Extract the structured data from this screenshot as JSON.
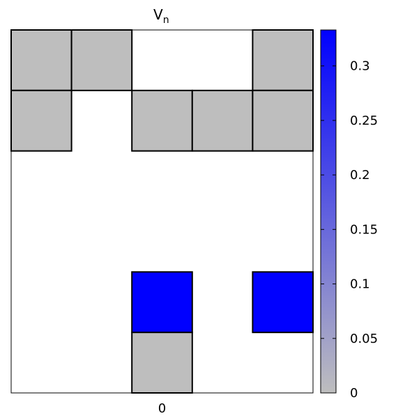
{
  "chart_data": {
    "type": "heatmap",
    "title": "V",
    "title_subscript": "n",
    "columns": 5,
    "rows": 6,
    "xtick_labels": [
      "0"
    ],
    "cells": [
      {
        "col": 0,
        "row": 0,
        "value": 0
      },
      {
        "col": 1,
        "row": 0,
        "value": 0
      },
      {
        "col": 4,
        "row": 0,
        "value": 0
      },
      {
        "col": 0,
        "row": 1,
        "value": 0
      },
      {
        "col": 2,
        "row": 1,
        "value": 0
      },
      {
        "col": 3,
        "row": 1,
        "value": 0
      },
      {
        "col": 4,
        "row": 1,
        "value": 0
      },
      {
        "col": 2,
        "row": 4,
        "value": 0.333
      },
      {
        "col": 4,
        "row": 4,
        "value": 0.333
      },
      {
        "col": 2,
        "row": 5,
        "value": 0
      }
    ],
    "colorbar": {
      "min": 0,
      "max": 0.333,
      "low_color": "#bebebe",
      "high_color": "#0000ff",
      "ticks": [
        0,
        0.05,
        0.1,
        0.15,
        0.2,
        0.25,
        0.3
      ],
      "tick_labels": [
        "0",
        "0.05",
        "0.1",
        "0.15",
        "0.2",
        "0.25",
        "0.3"
      ]
    }
  }
}
